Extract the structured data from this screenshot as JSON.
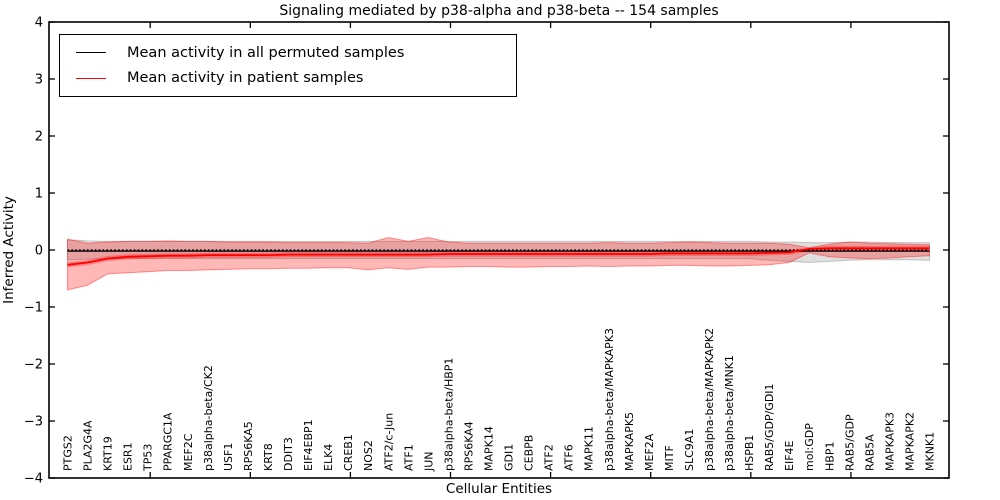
{
  "title": "Signaling mediated by p38-alpha and p38-beta -- 154 samples",
  "axes": {
    "xlabel": "Cellular Entities",
    "ylabel": "Inferred Activity",
    "y_tick_labels": [
      "4",
      "3",
      "2",
      "1",
      "0",
      "−1",
      "−2",
      "−3",
      "−4"
    ],
    "y_tick_values": [
      4,
      3,
      2,
      1,
      0,
      -1,
      -2,
      -3,
      -4
    ]
  },
  "legend": {
    "entries": [
      {
        "label": "Mean activity in all permuted samples",
        "color": "#000000"
      },
      {
        "label": "Mean activity in patient samples",
        "color": "#ff0000"
      }
    ]
  },
  "colors": {
    "permuted_line": "#000000",
    "patient_line": "#ff0000",
    "permuted_band_fill": "rgba(110,110,110,0.22)",
    "permuted_band_edge": "rgba(110,110,110,0.35)",
    "patient_band_fill": "rgba(255,0,0,0.28)",
    "patient_band_edge": "rgba(255,0,0,0.40)",
    "patient_inner_band_fill": "rgba(255,0,0,0.30)"
  },
  "chart_data": {
    "type": "line",
    "title": "Signaling mediated by p38-alpha and p38-beta -- 154 samples",
    "xlabel": "Cellular Entities",
    "ylabel": "Inferred Activity",
    "ylim": [
      -4,
      4
    ],
    "grid": false,
    "legend_position": "upper left",
    "categories": [
      "PTGS2",
      "PLA2G4A",
      "KRT19",
      "ESR1",
      "TP53",
      "PPARGC1A",
      "MEF2C",
      "p38alpha-beta/CK2",
      "USF1",
      "RPS6KA5",
      "KRT8",
      "DDIT3",
      "EIF4EBP1",
      "ELK4",
      "CREB1",
      "NOS2",
      "ATF2/c-Jun",
      "ATF1",
      "JUN",
      "p38alpha-beta/HBP1",
      "RPS6KA4",
      "MAPK14",
      "GDI1",
      "CEBPB",
      "ATF2",
      "ATF6",
      "MAPK11",
      "p38alpha-beta/MAPKAPK3",
      "MAPKAPK5",
      "MEF2A",
      "MITF",
      "SLC9A1",
      "p38alpha-beta/MAPKAPK2",
      "p38alpha-beta/MNK1",
      "HSPB1",
      "RAB5/GDP/GDI1",
      "EIF4E",
      "mol:GDP",
      "HBP1",
      "RAB5/GDP",
      "RAB5A",
      "MAPKAPK3",
      "MAPKAPK2",
      "MKNK1"
    ],
    "zero_line": {
      "value": 0,
      "style": "dotted",
      "color": "#000000"
    },
    "series": [
      {
        "name": "Mean activity in all permuted samples",
        "color": "#000000",
        "constant": -0.02
      },
      {
        "name": "Mean activity in patient samples",
        "color": "#ff0000",
        "values": [
          -0.26,
          -0.22,
          -0.15,
          -0.12,
          -0.11,
          -0.1,
          -0.1,
          -0.09,
          -0.09,
          -0.09,
          -0.09,
          -0.08,
          -0.08,
          -0.08,
          -0.08,
          -0.08,
          -0.08,
          -0.08,
          -0.08,
          -0.07,
          -0.07,
          -0.07,
          -0.07,
          -0.07,
          -0.07,
          -0.07,
          -0.07,
          -0.07,
          -0.07,
          -0.07,
          -0.06,
          -0.06,
          -0.06,
          -0.06,
          -0.06,
          -0.05,
          -0.04,
          0.02,
          0.03,
          0.03,
          0.03,
          0.03,
          0.03,
          0.03
        ]
      }
    ],
    "bands": [
      {
        "name": "permuted-samples-std-band",
        "upper": [
          0.18,
          0.16,
          0.15,
          0.15,
          0.15,
          0.15,
          0.15,
          0.15,
          0.15,
          0.15,
          0.15,
          0.15,
          0.15,
          0.15,
          0.15,
          0.15,
          0.15,
          0.15,
          0.15,
          0.15,
          0.15,
          0.15,
          0.15,
          0.15,
          0.15,
          0.15,
          0.15,
          0.15,
          0.15,
          0.15,
          0.15,
          0.15,
          0.15,
          0.15,
          0.15,
          0.14,
          0.14,
          0.13,
          0.13,
          0.14,
          0.14,
          0.13,
          0.13,
          0.13
        ],
        "lower": [
          -0.17,
          -0.16,
          -0.15,
          -0.15,
          -0.15,
          -0.15,
          -0.15,
          -0.15,
          -0.15,
          -0.15,
          -0.15,
          -0.15,
          -0.15,
          -0.15,
          -0.15,
          -0.15,
          -0.15,
          -0.15,
          -0.15,
          -0.15,
          -0.15,
          -0.15,
          -0.15,
          -0.15,
          -0.15,
          -0.15,
          -0.15,
          -0.15,
          -0.15,
          -0.15,
          -0.15,
          -0.15,
          -0.15,
          -0.15,
          -0.15,
          -0.18,
          -0.2,
          -0.22,
          -0.2,
          -0.18,
          -0.17,
          -0.17,
          -0.17,
          -0.18
        ]
      },
      {
        "name": "patient-samples-std-band",
        "upper": [
          0.19,
          0.12,
          0.14,
          0.15,
          0.15,
          0.16,
          0.15,
          0.15,
          0.14,
          0.14,
          0.14,
          0.13,
          0.13,
          0.13,
          0.13,
          0.12,
          0.22,
          0.15,
          0.22,
          0.14,
          0.12,
          0.12,
          0.12,
          0.12,
          0.12,
          0.12,
          0.12,
          0.13,
          0.12,
          0.12,
          0.13,
          0.14,
          0.13,
          0.12,
          0.12,
          0.12,
          0.1,
          0.04,
          0.1,
          0.14,
          0.12,
          0.11,
          0.1,
          0.09
        ],
        "lower": [
          -0.7,
          -0.62,
          -0.42,
          -0.4,
          -0.38,
          -0.36,
          -0.36,
          -0.35,
          -0.34,
          -0.33,
          -0.33,
          -0.32,
          -0.32,
          -0.31,
          -0.31,
          -0.35,
          -0.31,
          -0.34,
          -0.3,
          -0.3,
          -0.29,
          -0.29,
          -0.3,
          -0.3,
          -0.29,
          -0.29,
          -0.28,
          -0.29,
          -0.28,
          -0.28,
          -0.27,
          -0.27,
          -0.28,
          -0.28,
          -0.27,
          -0.26,
          -0.22,
          -0.05,
          -0.12,
          -0.14,
          -0.15,
          -0.14,
          -0.12,
          -0.1
        ]
      },
      {
        "name": "patient-samples-inner-band",
        "around_series": "Mean activity in patient samples",
        "halfwidth": 0.045
      }
    ]
  }
}
